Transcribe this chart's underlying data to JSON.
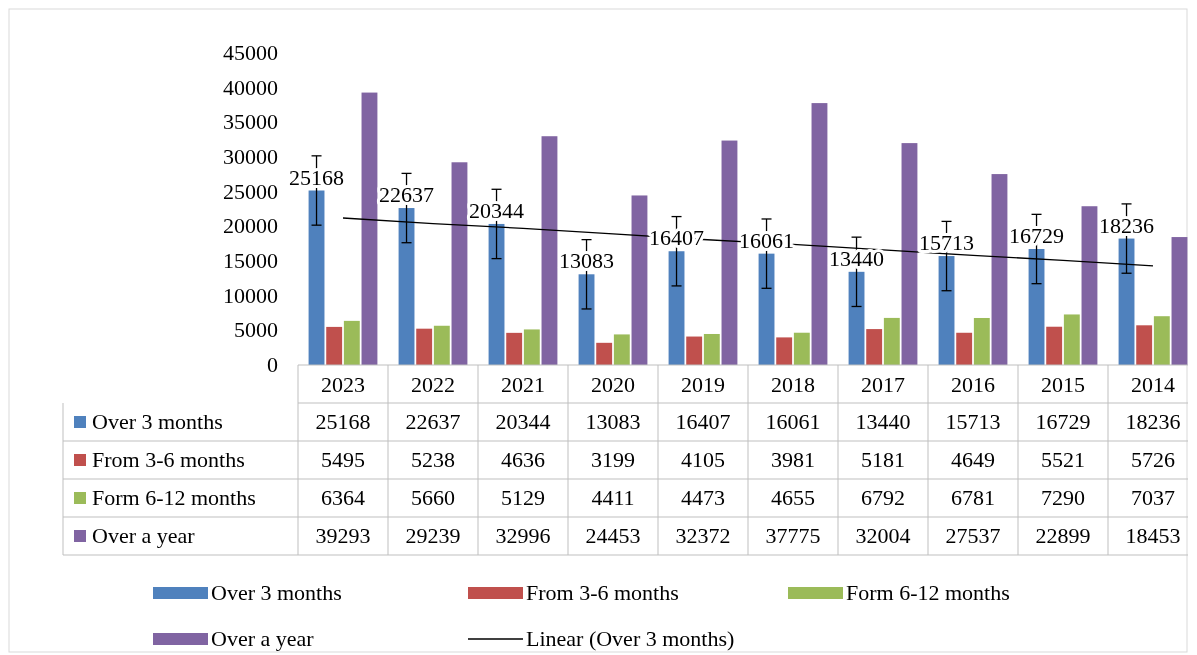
{
  "chart_data": {
    "type": "bar",
    "categories": [
      "2023",
      "2022",
      "2021",
      "2020",
      "2019",
      "2018",
      "2017",
      "2016",
      "2015",
      "2014"
    ],
    "annotations": [
      "25168",
      "22637",
      "20344",
      "13083",
      "16407",
      "16061",
      "13440",
      "15713",
      "16729",
      "18236"
    ],
    "ylim": [
      0,
      45000
    ],
    "yticks": [
      0,
      5000,
      10000,
      15000,
      20000,
      25000,
      30000,
      35000,
      40000,
      45000
    ],
    "legend": "bottom",
    "data_labels": true,
    "series": [
      {
        "name": "Over 3 months",
        "color": "#4f81bd",
        "values": [
          25168,
          22637,
          20344,
          13083,
          16407,
          16061,
          13440,
          15713,
          16729,
          18236
        ],
        "errors": [
          5000,
          5000,
          5000,
          5000,
          5000,
          5000,
          5000,
          5000,
          5000,
          5000
        ]
      },
      {
        "name": "From 3-6 months",
        "color": "#c0504d",
        "values": [
          5495,
          5238,
          4636,
          3199,
          4105,
          3981,
          5181,
          4649,
          5521,
          5726
        ]
      },
      {
        "name": "Form 6-12 months",
        "color": "#9bbb59",
        "values": [
          6364,
          5660,
          5129,
          4411,
          4473,
          4655,
          6792,
          6781,
          7290,
          7037
        ]
      },
      {
        "name": "Over a year",
        "color": "#8064a2",
        "values": [
          39293,
          29239,
          32996,
          24453,
          32372,
          37775,
          32004,
          27537,
          22899,
          18453
        ]
      },
      {
        "name": "Linear (Over 3 months)",
        "type": "line",
        "color": "#000000",
        "values": [
          21200,
          20400,
          19700,
          18900,
          18100,
          17400,
          16600,
          15800,
          15100,
          14300
        ],
        "value_labels": [
          null,
          null,
          null,
          null,
          null,
          null,
          null,
          null,
          null,
          null
        ]
      }
    ]
  }
}
